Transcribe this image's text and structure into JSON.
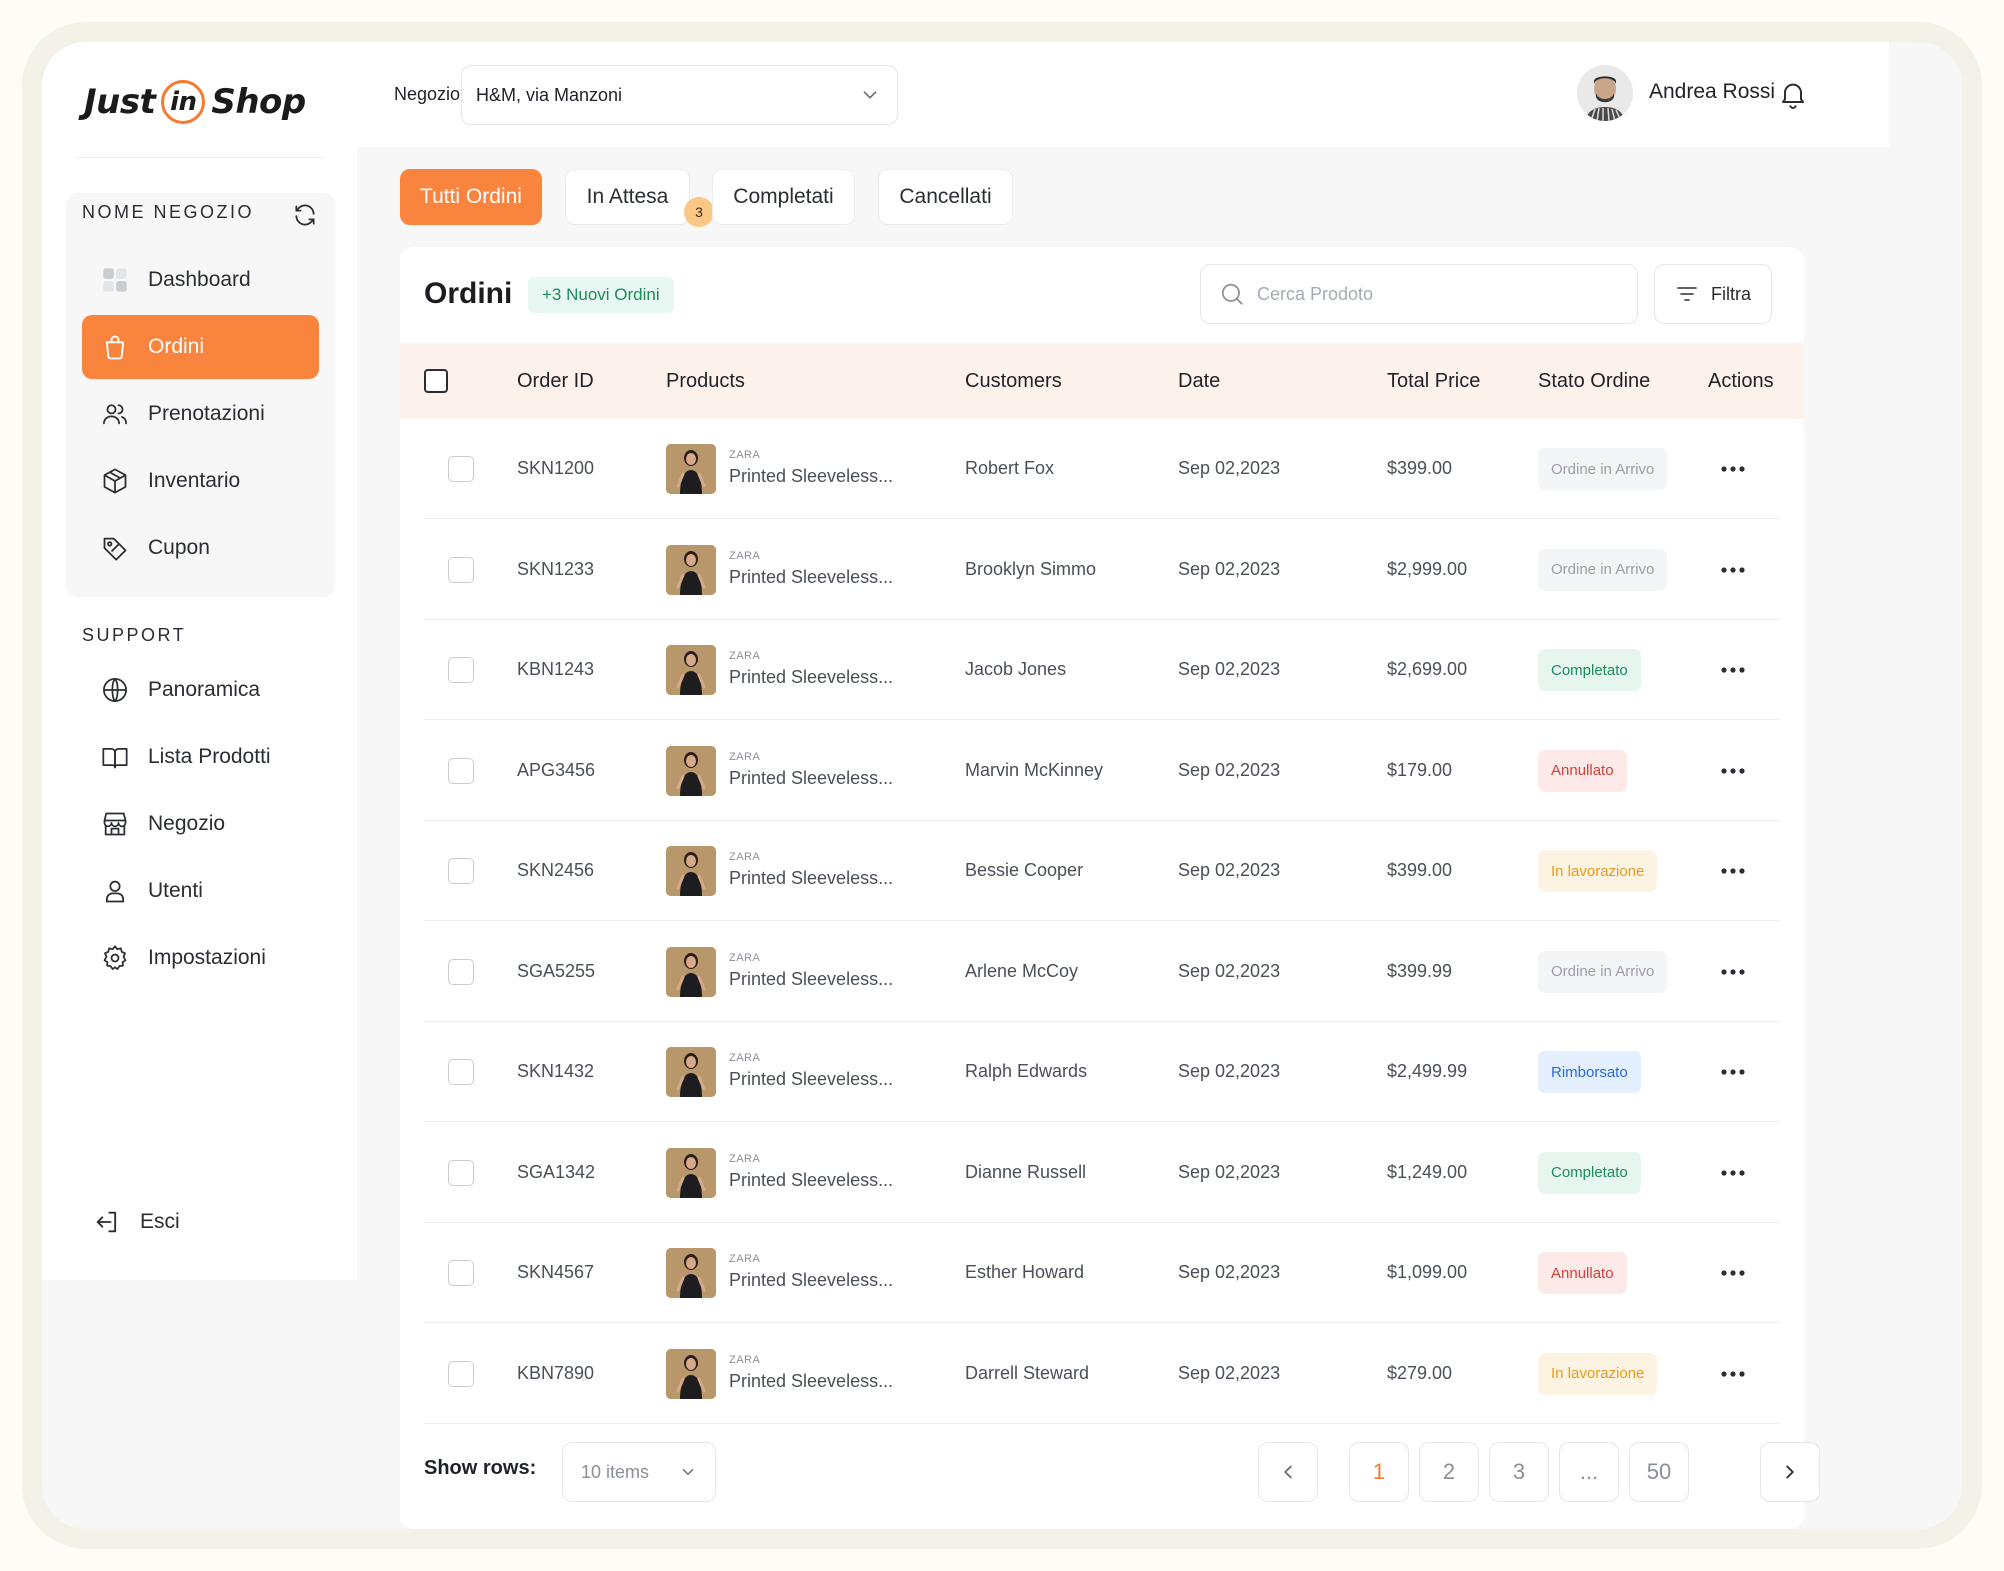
{
  "brand": {
    "logo_part1": "Just",
    "logo_part2": "in",
    "logo_part3": "Shop",
    "accent": "#f9843e"
  },
  "header": {
    "store_label": "Negozio",
    "store_value": "H&M, via Manzoni",
    "user_name": "Andrea Rossi"
  },
  "sidebar": {
    "shop_section": "NOME NEGOZIO",
    "support_section": "SUPPORT",
    "items": [
      {
        "label": "Dashboard",
        "icon": "dashboard-icon"
      },
      {
        "label": "Ordini",
        "icon": "bag-icon",
        "active": true
      },
      {
        "label": "Prenotazioni",
        "icon": "users-icon"
      },
      {
        "label": "Inventario",
        "icon": "box-icon"
      },
      {
        "label": "Cupon",
        "icon": "tag-icon"
      }
    ],
    "support_items": [
      {
        "label": "Panoramica",
        "icon": "globe-icon"
      },
      {
        "label": "Lista Prodotti",
        "icon": "book-icon"
      },
      {
        "label": "Negozio",
        "icon": "store-icon"
      },
      {
        "label": "Utenti",
        "icon": "user-icon"
      },
      {
        "label": "Impostazioni",
        "icon": "gear-icon"
      }
    ],
    "logout": "Esci"
  },
  "tabs": [
    {
      "label": "Tutti Ordini",
      "active": true
    },
    {
      "label": "In Attesa",
      "badge": "3"
    },
    {
      "label": "Completati"
    },
    {
      "label": "Cancellati"
    }
  ],
  "orders": {
    "title": "Ordini",
    "new_chip": "+3 Nuovi Ordini",
    "search_placeholder": "Cerca Prodoto",
    "filter_label": "Filtra",
    "columns": [
      "Order ID",
      "Products",
      "Customers",
      "Date",
      "Total Price",
      "Stato Ordine",
      "Actions"
    ],
    "rows": [
      {
        "id": "SKN1200",
        "brand": "ZARA",
        "product": "Printed Sleeveless...",
        "customer": "Robert Fox",
        "date": "Sep 02,2023",
        "price": "$399.00",
        "status": "Ordine in Arrivo",
        "status_type": "arrivo"
      },
      {
        "id": "SKN1233",
        "brand": "ZARA",
        "product": "Printed Sleeveless...",
        "customer": "Brooklyn Simmo",
        "date": "Sep 02,2023",
        "price": "$2,999.00",
        "status": "Ordine in Arrivo",
        "status_type": "arrivo"
      },
      {
        "id": "KBN1243",
        "brand": "ZARA",
        "product": "Printed Sleeveless...",
        "customer": "Jacob Jones",
        "date": "Sep 02,2023",
        "price": "$2,699.00",
        "status": "Completato",
        "status_type": "completato"
      },
      {
        "id": "APG3456",
        "brand": "ZARA",
        "product": "Printed Sleeveless...",
        "customer": "Marvin McKinney",
        "date": "Sep 02,2023",
        "price": "$179.00",
        "status": "Annullato",
        "status_type": "annullato"
      },
      {
        "id": "SKN2456",
        "brand": "ZARA",
        "product": "Printed Sleeveless...",
        "customer": "Bessie Cooper",
        "date": "Sep 02,2023",
        "price": "$399.00",
        "status": "In lavorazione",
        "status_type": "lavoro"
      },
      {
        "id": "SGA5255",
        "brand": "ZARA",
        "product": "Printed Sleeveless...",
        "customer": "Arlene McCoy",
        "date": "Sep 02,2023",
        "price": "$399.99",
        "status": "Ordine in Arrivo",
        "status_type": "arrivo"
      },
      {
        "id": "SKN1432",
        "brand": "ZARA",
        "product": "Printed Sleeveless...",
        "customer": "Ralph Edwards",
        "date": "Sep 02,2023",
        "price": "$2,499.99",
        "status": "Rimborsato",
        "status_type": "rimb"
      },
      {
        "id": "SGA1342",
        "brand": "ZARA",
        "product": "Printed Sleeveless...",
        "customer": "Dianne Russell",
        "date": "Sep 02,2023",
        "price": "$1,249.00",
        "status": "Completato",
        "status_type": "completato"
      },
      {
        "id": "SKN4567",
        "brand": "ZARA",
        "product": "Printed Sleeveless...",
        "customer": "Esther Howard",
        "date": "Sep 02,2023",
        "price": "$1,099.00",
        "status": "Annullato",
        "status_type": "annullato"
      },
      {
        "id": "KBN7890",
        "brand": "ZARA",
        "product": "Printed Sleeveless...",
        "customer": "Darrell Steward",
        "date": "Sep 02,2023",
        "price": "$279.00",
        "status": "In lavorazione",
        "status_type": "lavoro"
      }
    ]
  },
  "pagination": {
    "show_rows_label": "Show rows:",
    "rows_value": "10 items",
    "pages": [
      "1",
      "2",
      "3",
      "...",
      "50"
    ],
    "current": "1"
  }
}
